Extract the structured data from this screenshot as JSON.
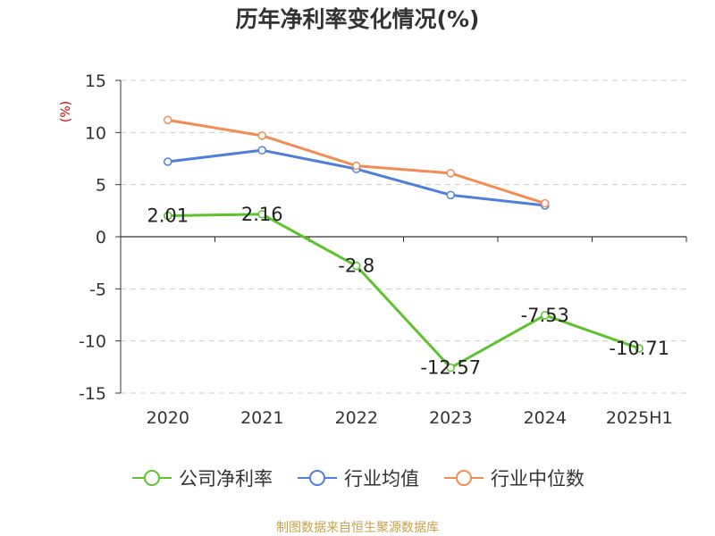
{
  "chart_data": {
    "type": "line",
    "title": "历年净利率变化情况(%)",
    "ylabel": "(%)",
    "xlabel": "",
    "categories": [
      "2020",
      "2021",
      "2022",
      "2023",
      "2024",
      "2025H1"
    ],
    "ylim": [
      -15,
      15
    ],
    "yticks": [
      15,
      10,
      5,
      0,
      -5,
      -10,
      -15
    ],
    "grid": true,
    "legend_position": "bottom",
    "series": [
      {
        "name": "公司净利率",
        "color": "#5ec22e",
        "values": [
          2.01,
          2.16,
          -2.8,
          -12.57,
          -7.53,
          -10.71
        ],
        "labels": [
          "2.01",
          "2.16",
          "-2.8",
          "-12.57",
          "-7.53",
          "-10.71"
        ]
      },
      {
        "name": "行业均值",
        "color": "#4f7fd9",
        "values": [
          7.2,
          8.3,
          6.5,
          4.0,
          3.0,
          null
        ]
      },
      {
        "name": "行业中位数",
        "color": "#f28c55",
        "values": [
          11.2,
          9.7,
          6.8,
          6.1,
          3.2,
          null
        ]
      }
    ]
  },
  "source_note": "制图数据来自恒生聚源数据库"
}
